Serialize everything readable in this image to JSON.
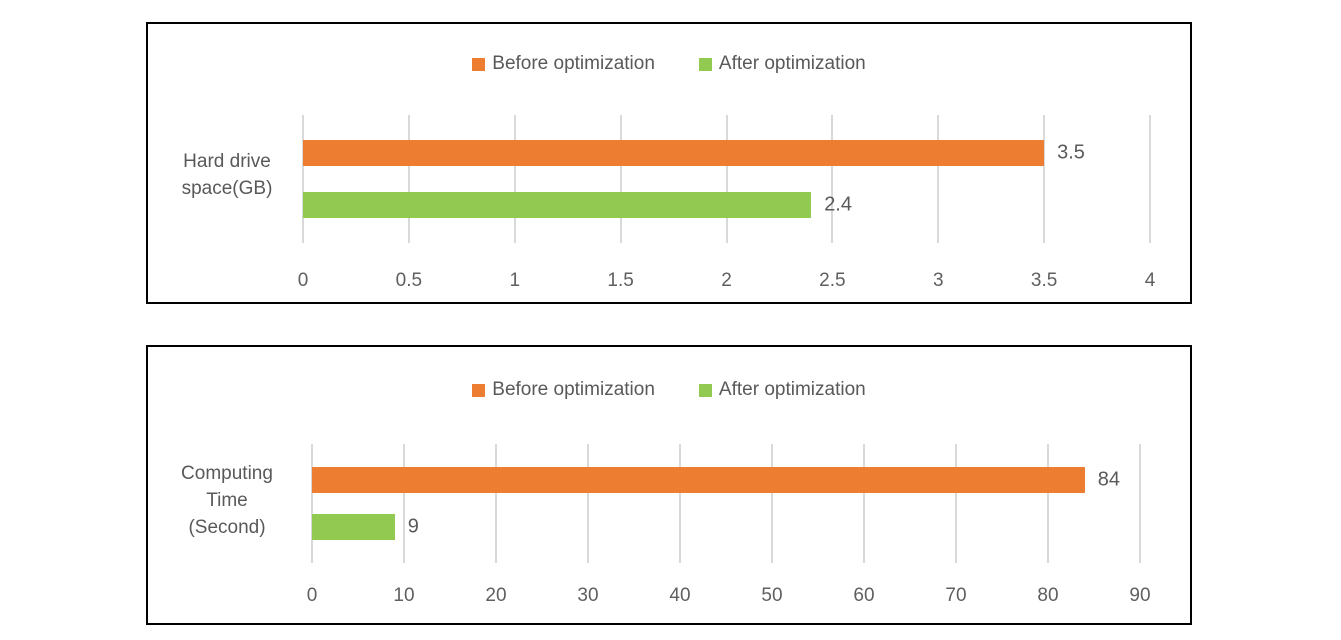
{
  "page": {
    "background_color": "#ffffff",
    "frame_color": "#000000",
    "gridline_color": "#d9d9d9",
    "text_color": "#595959"
  },
  "chart_data": [
    {
      "id": "hard-drive-space",
      "type": "bar",
      "orientation": "horizontal",
      "title": "",
      "category": "Hard drive space(GB)",
      "category_label_lines": [
        "Hard drive",
        "space(GB)"
      ],
      "series": [
        {
          "name": "Before optimization",
          "value": 3.5,
          "label": "3.5",
          "color": "#ed7d31"
        },
        {
          "name": "After optimization",
          "value": 2.4,
          "label": "2.4",
          "color": "#92c950"
        }
      ],
      "xlim": [
        0,
        4
      ],
      "xtick_values": [
        0,
        0.5,
        1,
        1.5,
        2,
        2.5,
        3,
        3.5,
        4
      ],
      "xtick_labels": [
        "0",
        "0.5",
        "1",
        "1.5",
        "2",
        "2.5",
        "3",
        "3.5",
        "4"
      ],
      "grid": true,
      "legend_position": "top"
    },
    {
      "id": "computing-time",
      "type": "bar",
      "orientation": "horizontal",
      "title": "",
      "category": "Computing Time (Second)",
      "category_label_lines": [
        "Computing",
        "Time",
        "(Second)"
      ],
      "series": [
        {
          "name": "Before optimization",
          "value": 84,
          "label": "84",
          "color": "#ed7d31"
        },
        {
          "name": "After optimization",
          "value": 9,
          "label": "9",
          "color": "#92c950"
        }
      ],
      "xlim": [
        0,
        90
      ],
      "xtick_values": [
        0,
        10,
        20,
        30,
        40,
        50,
        60,
        70,
        80,
        90
      ],
      "xtick_labels": [
        "0",
        "10",
        "20",
        "30",
        "40",
        "50",
        "60",
        "70",
        "80",
        "90"
      ],
      "grid": true,
      "legend_position": "top"
    }
  ]
}
